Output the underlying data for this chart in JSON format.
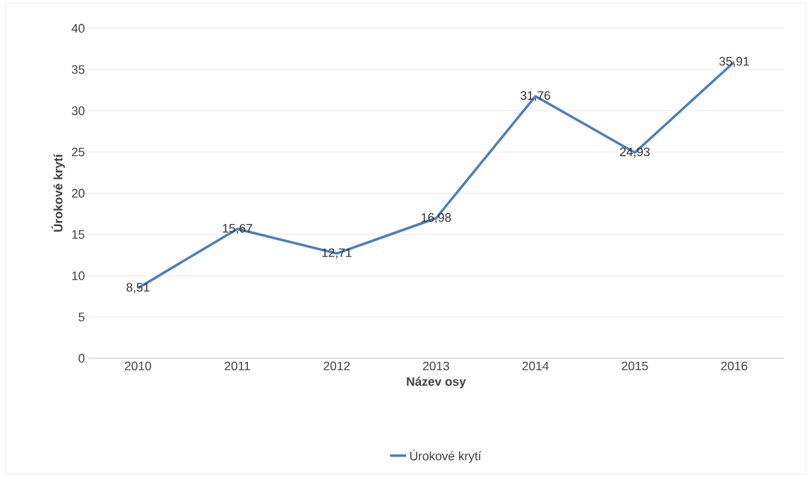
{
  "chart_data": {
    "type": "line",
    "xlabel": "Název osy",
    "ylabel": "Úrokové krytí",
    "categories": [
      "2010",
      "2011",
      "2012",
      "2013",
      "2014",
      "2015",
      "2016"
    ],
    "series": [
      {
        "name": "Úrokové krytí",
        "color": "#4a7ebb",
        "values": [
          8.51,
          15.67,
          12.71,
          16.98,
          31.76,
          24.93,
          35.91
        ],
        "value_labels": [
          "8,51",
          "15,67",
          "12,71",
          "16,98",
          "31,76",
          "24,93",
          "35,91"
        ]
      }
    ],
    "ylim": [
      0,
      40
    ],
    "yticks": [
      0,
      5,
      10,
      15,
      20,
      25,
      30,
      35,
      40
    ],
    "grid": "y",
    "legend": "bottom",
    "marker": "none",
    "line_style": "solid"
  }
}
